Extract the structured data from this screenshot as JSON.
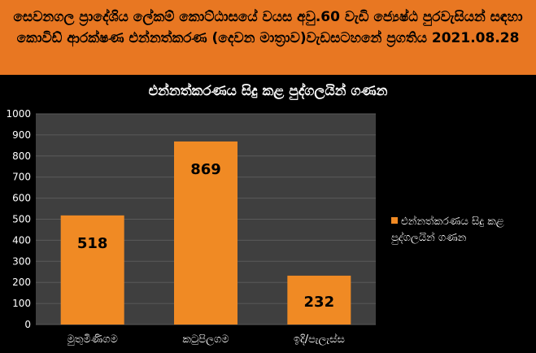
{
  "header": {
    "title": "සෙවනගල ප්‍රාදේශිය ලේකම් කොට්ඨාසයේ වයස අවු.60 වැඩි ජ්‍යෙෂ්ඨ පුරවැසියන් සඳහා කොවිඩ් ආරක්ෂණ එන්නත්කරණ (දෙවන මාත්‍රාව)වැඩසටහනේ ප්‍රගතිය 2021.08.28"
  },
  "colors": {
    "header_bg": "#e87722",
    "bar": "#f08a24",
    "background": "#000000",
    "plot_bg": "#3f3f3f"
  },
  "chart_data": {
    "type": "bar",
    "title": "එන්නත්කරණය සිදු කළ පුද්ගලයින් ගණන",
    "categories": [
      "මුතුමිණිගම",
      "කටුපිලගම",
      "ඉදි/පැලැස්ස"
    ],
    "series": [
      {
        "name": "එන්නත්කරණය සිදු කළ පුද්ගලයින් ගණන",
        "values": [
          518,
          869,
          232
        ]
      }
    ],
    "ylim": [
      0,
      1000
    ],
    "yticks": [
      0,
      100,
      200,
      300,
      400,
      500,
      600,
      700,
      800,
      900,
      1000
    ],
    "data_labels": [
      "518",
      "869",
      "232"
    ],
    "grid": true,
    "legend": "right"
  }
}
